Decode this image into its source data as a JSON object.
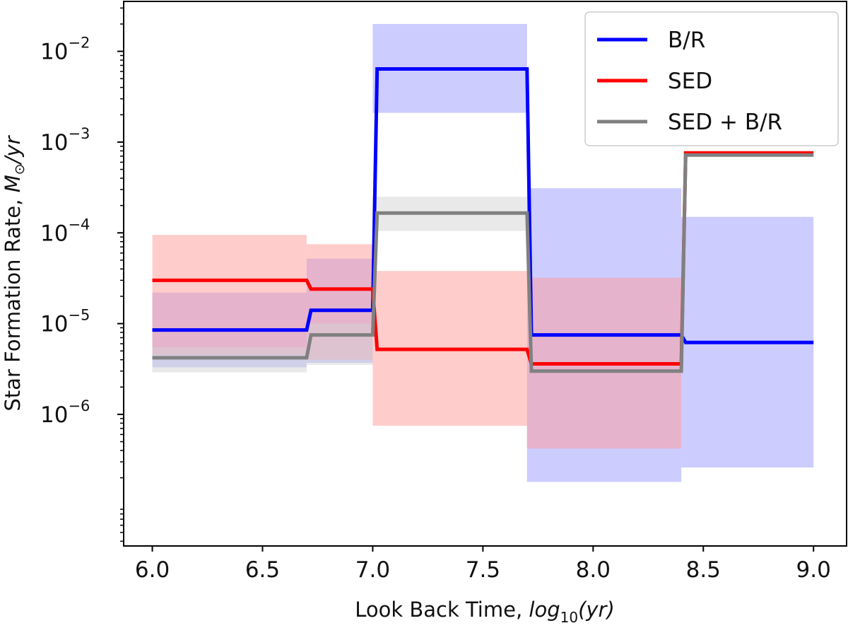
{
  "chart_data": {
    "type": "line",
    "style": "step",
    "title": "",
    "xlabel_main": "Look Back Time, ",
    "xlabel_math": "log",
    "xlabel_sub": "10",
    "xlabel_tail": "(yr)",
    "ylabel_main": "Star Formation Rate, ",
    "ylabel_M": "M",
    "ylabel_sun": "⊙",
    "ylabel_unit": "/yr",
    "xlim": [
      5.87,
      9.15
    ],
    "ylim_log10": [
      -7.45,
      -1.45
    ],
    "y_scale": "log",
    "x_ticks": [
      6.0,
      6.5,
      7.0,
      7.5,
      8.0,
      8.5,
      9.0
    ],
    "x_tick_labels": [
      "6.0",
      "6.5",
      "7.0",
      "7.5",
      "8.0",
      "8.5",
      "9.0"
    ],
    "y_ticks_log10": [
      -6,
      -5,
      -4,
      -3,
      -2
    ],
    "y_tick_base": "10",
    "y_tick_exps": [
      "−6",
      "−5",
      "−4",
      "−3",
      "−2"
    ],
    "legend_position": "top-right",
    "bins": [
      [
        6.0,
        6.7
      ],
      [
        6.7,
        7.0
      ],
      [
        7.0,
        7.7
      ],
      [
        7.7,
        8.4
      ],
      [
        8.4,
        9.0
      ]
    ],
    "series": [
      {
        "name": "B/R",
        "color": "#0000ff",
        "band_color": "#9999ff",
        "values": [
          8.5e-06,
          1.4e-05,
          0.0064,
          7.5e-06,
          6.2e-06
        ],
        "lower": [
          3.3e-06,
          3.7e-06,
          0.0021,
          1.8e-07,
          2.6e-07
        ],
        "upper": [
          2.2e-05,
          5.2e-05,
          0.02,
          0.00031,
          0.00015
        ]
      },
      {
        "name": "SED",
        "color": "#ff0000",
        "band_color": "#ff9999",
        "values": [
          3e-05,
          2.4e-05,
          5.2e-06,
          3.6e-06,
          0.00076
        ],
        "lower": [
          4.5e-06,
          4e-06,
          7.5e-07,
          4.2e-07,
          0.00076
        ],
        "upper": [
          9.5e-05,
          7.5e-05,
          3.8e-05,
          3.2e-05,
          0.00076
        ]
      },
      {
        "name": "SED + B/R",
        "color": "#808080",
        "band_color": "#d3d3d3",
        "values": [
          4.2e-06,
          7.5e-06,
          0.000165,
          3e-06,
          0.00072
        ],
        "lower": [
          2.9e-06,
          3.5e-06,
          0.000105,
          3e-06,
          0.00072
        ],
        "upper": [
          5.5e-06,
          1e-05,
          0.00025,
          3e-06,
          0.00072
        ]
      }
    ]
  }
}
